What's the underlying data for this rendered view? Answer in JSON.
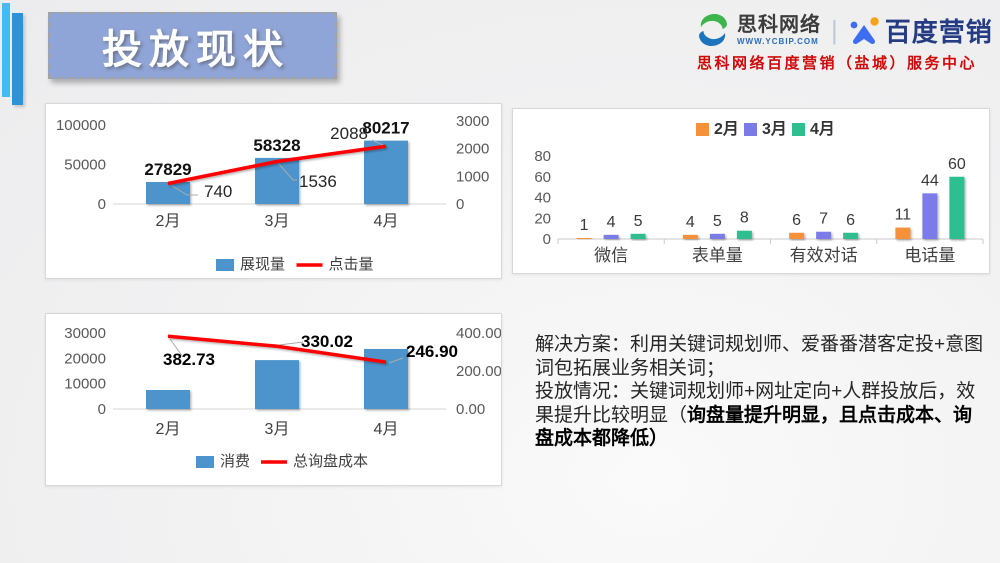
{
  "slide": {
    "title": "投放现状",
    "header": {
      "logo1_name": "思科网络",
      "logo1_url": "WWW.YCBIP.COM",
      "divider": "|",
      "logo2_name": "百度营销",
      "subtitle": "思科网络百度营销（盐城）服务中心"
    },
    "solution": {
      "line1": "解决方案：利用关键词规划师、爱番番潜客定投+意图词包拓展业务相关词；",
      "line2_normal": "投放情况：关键词规划师+网址定向+人群投放后，效果提升比较明显（",
      "line2_bold": "询盘量提升明显，且点击成本、询盘成本都降低）"
    },
    "colors": {
      "accent_cyan": "#41BBF0",
      "accent_blue": "#2D93D8",
      "title_box_fill": "#90A5D7",
      "subtitle_red": "#CF0A0A"
    }
  },
  "chart_data": [
    {
      "id": "impressions_clicks",
      "type": "combo_bar_line",
      "categories": [
        "2月",
        "3月",
        "4月"
      ],
      "bar_series": {
        "name": "展现量",
        "values": [
          27829,
          58328,
          80217
        ],
        "color": "#4D94CC"
      },
      "line_series": {
        "name": "点击量",
        "values": [
          740,
          1536,
          2088
        ],
        "labels": [
          "740",
          "1536",
          "2088"
        ],
        "color": "#FE0000"
      },
      "left_axis": {
        "ticks": [
          "0",
          "50000",
          "100000"
        ],
        "max": 100000
      },
      "right_axis": {
        "ticks": [
          "0",
          "1000",
          "2000",
          "3000"
        ],
        "max": 3000
      },
      "legend": [
        "展现量",
        "点击量"
      ],
      "legend_position": "bottom",
      "grid": false
    },
    {
      "id": "channel_leads",
      "type": "grouped_bar",
      "categories": [
        "微信",
        "表单量",
        "有效对话",
        "电话量"
      ],
      "series": [
        {
          "name": "2月",
          "color": "#F5913A",
          "values": [
            1,
            4,
            6,
            11
          ]
        },
        {
          "name": "3月",
          "color": "#7B7BE8",
          "values": [
            4,
            5,
            7,
            44
          ]
        },
        {
          "name": "4月",
          "color": "#2FBE8F",
          "values": [
            5,
            8,
            6,
            60
          ]
        }
      ],
      "y_axis": {
        "ticks": [
          "0",
          "20",
          "40",
          "60",
          "80"
        ],
        "max": 80
      },
      "legend": [
        "2月",
        "3月",
        "4月"
      ],
      "legend_position": "top",
      "grid": false
    },
    {
      "id": "cost_inquiry",
      "type": "combo_bar_line",
      "categories": [
        "2月",
        "3月",
        "4月"
      ],
      "bar_series": {
        "name": "消费",
        "values": [
          7500,
          19300,
          23700
        ],
        "color": "#4D94CC",
        "labels_shown": false
      },
      "line_series": {
        "name": "总询盘成本",
        "values": [
          382.73,
          330.02,
          246.9
        ],
        "labels": [
          "382.73",
          "330.02",
          "246.90"
        ],
        "color": "#FE0000"
      },
      "left_axis": {
        "ticks": [
          "0",
          "10000",
          "20000",
          "30000"
        ],
        "max": 30000
      },
      "right_axis": {
        "ticks": [
          "0.00",
          "200.00",
          "400.00"
        ],
        "max": 400
      },
      "legend": [
        "消费",
        "总询盘成本"
      ],
      "legend_position": "bottom",
      "grid": false
    }
  ]
}
